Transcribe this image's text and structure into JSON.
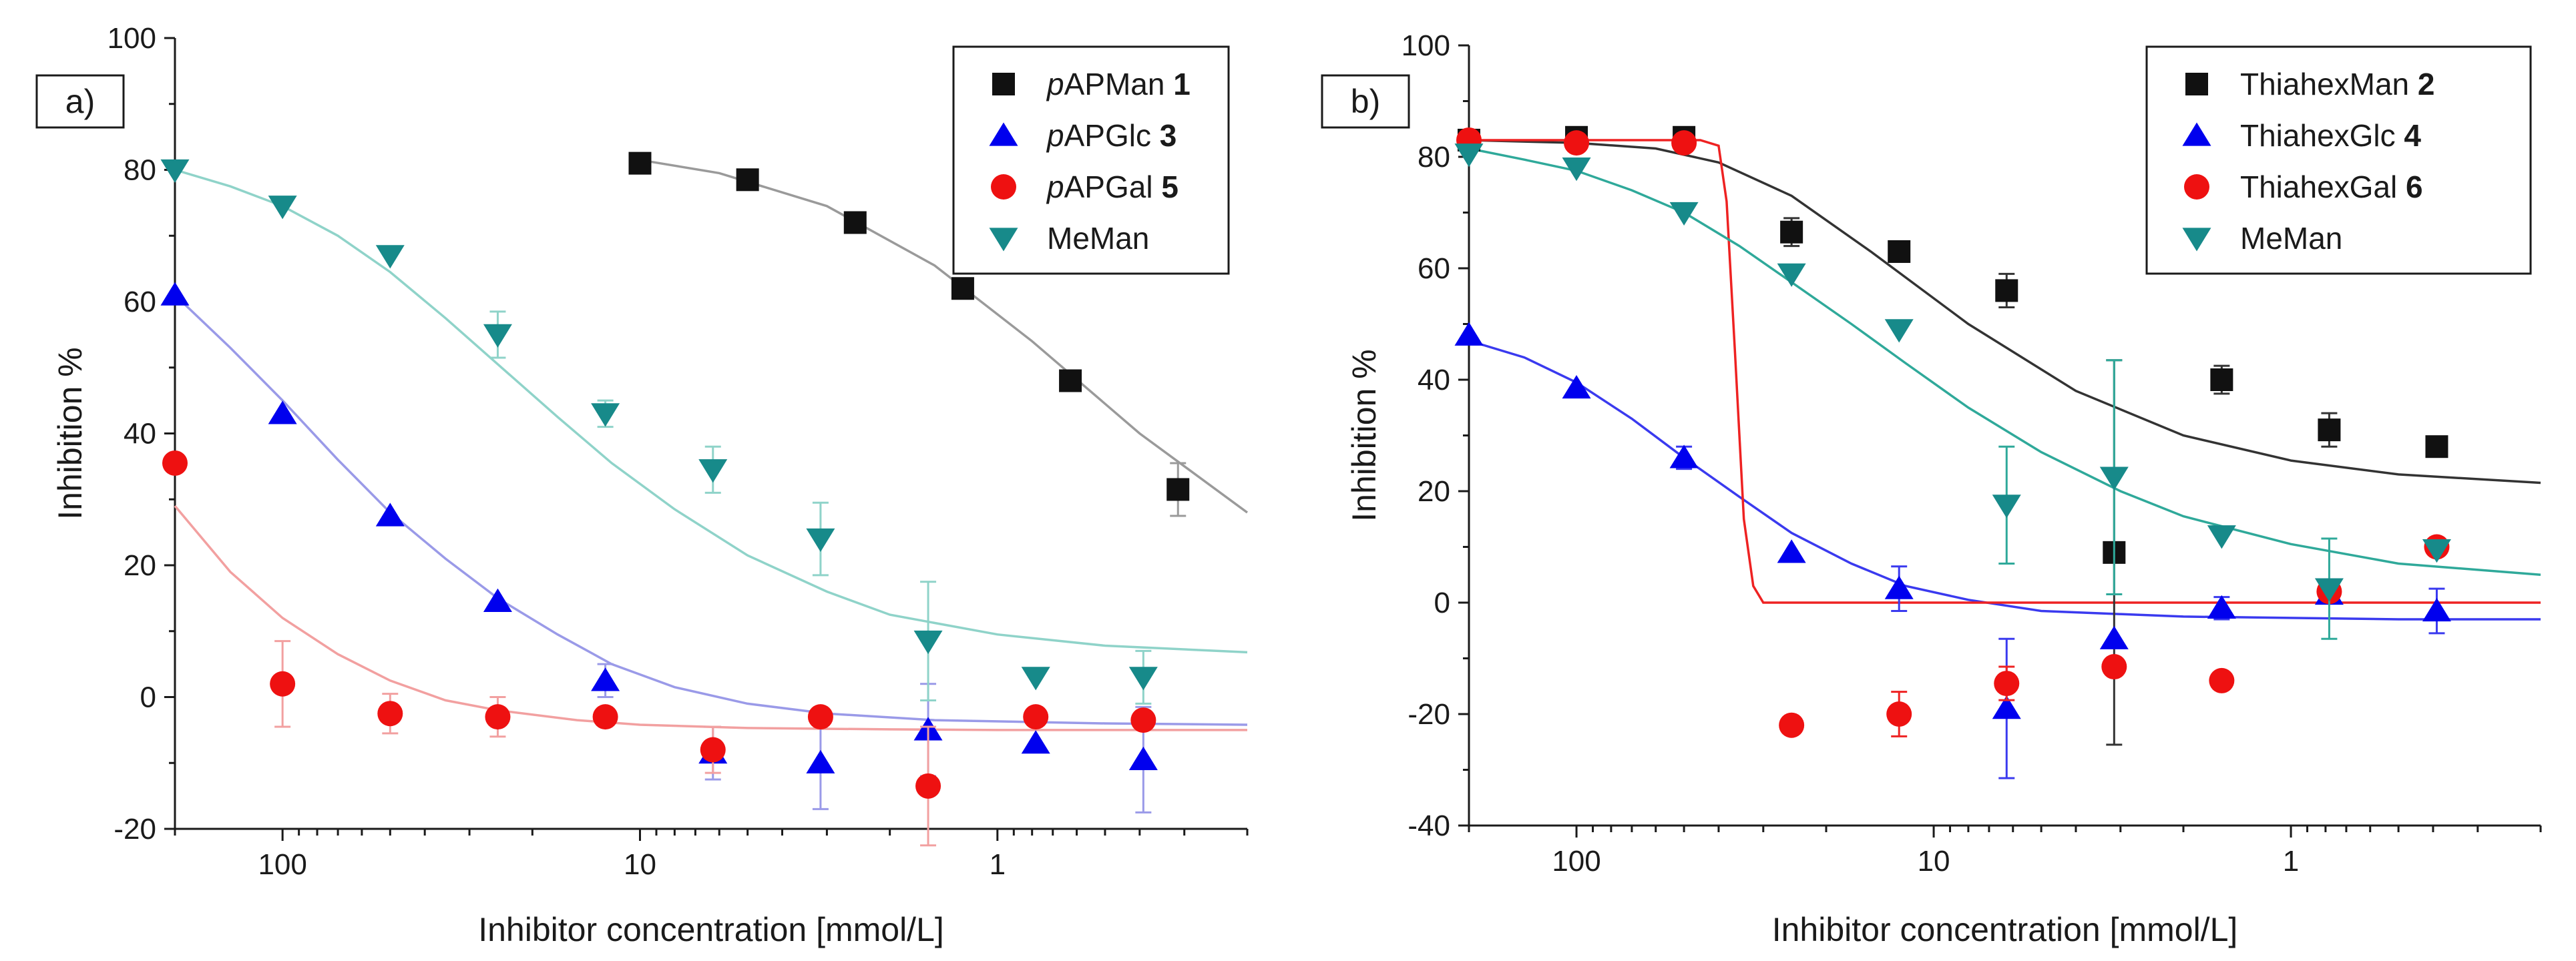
{
  "chart_data": [
    {
      "type": "scatter",
      "panel": "a)",
      "xlabel": "Inhibitor concentration [mmol/L]",
      "ylabel": "Inhibition %",
      "xscale": "log",
      "xaxis_reversed": true,
      "xlim": [
        200,
        0.2
      ],
      "ylim": [
        -20,
        100
      ],
      "yticks": [
        -20,
        0,
        20,
        40,
        60,
        80,
        100
      ],
      "xticks": [
        {
          "value": 100,
          "label": "100"
        },
        {
          "value": 10,
          "label": "10"
        },
        {
          "value": 1,
          "label": "1"
        }
      ],
      "legend_position": "top-right",
      "series": [
        {
          "name": "pAPMan 1",
          "label_prefix": "p",
          "label_main": "APMan",
          "label_bold": " 1",
          "marker": "square",
          "color": "#111111",
          "fit_color": "#9a9a9a",
          "x": [
            10,
            5,
            2.5,
            1.25,
            0.625,
            0.3125
          ],
          "y": [
            81,
            78.5,
            72,
            62,
            48,
            31.5
          ],
          "err": [
            0,
            0,
            0,
            0,
            0,
            4
          ],
          "fit_x": [
            10,
            6,
            3,
            1.5,
            0.8,
            0.4,
            0.2
          ],
          "fit_y": [
            81.5,
            79.5,
            74.5,
            65.5,
            54,
            40,
            28
          ]
        },
        {
          "name": "pAPGlc 3",
          "label_prefix": "p",
          "label_main": "APGlc",
          "label_bold": " 3",
          "marker": "triangle-up",
          "color": "#0000ee",
          "fit_color": "#9a9ae8",
          "x": [
            200,
            100,
            50,
            25,
            12.5,
            6.25,
            3.125,
            1.5625,
            0.78125,
            0.390625
          ],
          "y": [
            61,
            43,
            27.5,
            14.5,
            2.5,
            -8.5,
            -10,
            -5,
            -7,
            -9.5
          ],
          "err": [
            0,
            0,
            0,
            0,
            2.5,
            4,
            7,
            7,
            0,
            8
          ],
          "fit_x": [
            200,
            140,
            100,
            70,
            50,
            35,
            25,
            17,
            12,
            8,
            5,
            3,
            1.5,
            0.5,
            0.2
          ],
          "fit_y": [
            61,
            53,
            45,
            36,
            28,
            21,
            15,
            9.5,
            5,
            1.5,
            -1,
            -2.5,
            -3.5,
            -4,
            -4.2
          ]
        },
        {
          "name": "pAPGal 5",
          "label_prefix": "p",
          "label_main": "APGal",
          "label_bold": " 5",
          "marker": "circle",
          "color": "#ee1111",
          "fit_color": "#f2a0a0",
          "x": [
            200,
            100,
            50,
            25,
            12.5,
            6.25,
            3.125,
            1.5625,
            0.78125,
            0.390625
          ],
          "y": [
            35.5,
            2,
            -2.5,
            -3,
            -3,
            -8,
            -3,
            -13.5,
            -3,
            -3.5
          ],
          "err": [
            0,
            6.5,
            3,
            3,
            0,
            3.5,
            0,
            9,
            0,
            0
          ],
          "fit_x": [
            200,
            140,
            100,
            70,
            50,
            35,
            25,
            15,
            10,
            5,
            2,
            1,
            0.2
          ],
          "fit_y": [
            29,
            19,
            12,
            6.5,
            2.5,
            -0.5,
            -2,
            -3.5,
            -4.2,
            -4.7,
            -4.9,
            -5,
            -5
          ]
        },
        {
          "name": "MeMan",
          "label_prefix": "",
          "label_main": "MeMan",
          "label_bold": "",
          "marker": "triangle-down",
          "color": "#178a8a",
          "fit_color": "#8fd3c9",
          "x": [
            200,
            100,
            50,
            25,
            12.5,
            6.25,
            3.125,
            1.5625,
            0.78125,
            0.390625
          ],
          "y": [
            80,
            74.5,
            67,
            55,
            43,
            34.5,
            24,
            8.5,
            3,
            3
          ],
          "err": [
            0,
            0,
            0,
            3.5,
            2,
            3.5,
            5.5,
            9,
            0,
            4
          ],
          "fit_x": [
            200,
            140,
            100,
            70,
            50,
            35,
            25,
            17,
            12,
            8,
            5,
            3,
            2,
            1,
            0.5,
            0.2
          ],
          "fit_y": [
            80,
            77.5,
            74.5,
            70,
            64.5,
            57.5,
            50.5,
            42.5,
            35.5,
            28.5,
            21.5,
            16,
            12.5,
            9.5,
            7.8,
            6.8
          ]
        }
      ]
    },
    {
      "type": "scatter",
      "panel": "b)",
      "xlabel": "Inhibitor concentration [mmol/L]",
      "ylabel": "Inhibition %",
      "xscale": "log",
      "xaxis_reversed": true,
      "xlim": [
        200,
        0.2
      ],
      "ylim": [
        -40,
        100
      ],
      "yticks": [
        -40,
        -20,
        0,
        20,
        40,
        60,
        80,
        100
      ],
      "xticks": [
        {
          "value": 100,
          "label": "100"
        },
        {
          "value": 10,
          "label": "10"
        },
        {
          "value": 1,
          "label": "1"
        }
      ],
      "legend_position": "top-right",
      "series": [
        {
          "name": "ThiahexMan 2",
          "label_prefix": "",
          "label_main": "ThiahexMan",
          "label_bold": " 2",
          "marker": "square",
          "color": "#111111",
          "fit_color": "#333333",
          "x": [
            200,
            100,
            50,
            25,
            12.5,
            6.25,
            3.125,
            1.5625,
            0.78125,
            0.390625
          ],
          "y": [
            83,
            83.5,
            83.5,
            66.5,
            63,
            56,
            9,
            40,
            31,
            28
          ],
          "err": [
            0,
            0,
            0,
            2.5,
            0,
            3,
            34.5,
            2.5,
            3,
            0
          ],
          "fit_x": [
            200,
            100,
            60,
            40,
            25,
            15,
            8,
            4,
            2,
            1,
            0.5,
            0.2
          ],
          "fit_y": [
            83,
            82.5,
            81.5,
            79,
            73,
            63,
            50,
            38,
            30,
            25.5,
            23,
            21.5
          ]
        },
        {
          "name": "ThiahexGlc 4",
          "label_prefix": "",
          "label_main": "ThiahexGlc",
          "label_bold": " 4",
          "marker": "triangle-up",
          "color": "#0000ee",
          "fit_color": "#3a3aef",
          "x": [
            200,
            100,
            50,
            25,
            12.5,
            6.25,
            3.125,
            1.5625,
            0.78125,
            0.390625
          ],
          "y": [
            48,
            38.5,
            26,
            9,
            2.5,
            -19,
            -6.5,
            -1,
            1.5,
            -1.5
          ],
          "err": [
            0,
            0,
            2,
            0,
            4,
            12.5,
            0,
            2,
            0,
            4
          ],
          "fit_x": [
            200,
            140,
            100,
            70,
            50,
            35,
            25,
            17,
            12,
            8,
            5,
            2,
            0.5,
            0.2
          ],
          "fit_y": [
            47,
            44,
            39.5,
            33,
            26,
            19,
            12.5,
            7,
            3,
            0.5,
            -1.5,
            -2.5,
            -3,
            -3
          ]
        },
        {
          "name": "ThiahexGal 6",
          "label_prefix": "",
          "label_main": "ThiahexGal",
          "label_bold": " 6",
          "marker": "circle",
          "color": "#ee1111",
          "fit_color": "#ee2222",
          "x": [
            200,
            100,
            50,
            25,
            12.5,
            6.25,
            3.125,
            1.5625,
            0.78125,
            0.390625
          ],
          "y": [
            83,
            82.5,
            82.5,
            -22,
            -20,
            -14.5,
            -11.5,
            -14,
            2,
            10
          ],
          "err": [
            0,
            0,
            0,
            0,
            4,
            3,
            0,
            0,
            0,
            0
          ],
          "fit_x": [
            200,
            45,
            40,
            38,
            36,
            34,
            32,
            30,
            0.2
          ],
          "fit_y": [
            83,
            83,
            82,
            72,
            45,
            15,
            3,
            0,
            0
          ]
        },
        {
          "name": "MeMan",
          "label_prefix": "",
          "label_main": "MeMan",
          "label_bold": "",
          "marker": "triangle-down",
          "color": "#178a8a",
          "fit_color": "#2fa99a",
          "x": [
            200,
            100,
            50,
            25,
            12.5,
            6.25,
            3.125,
            1.5625,
            0.78125,
            0.390625
          ],
          "y": [
            80.5,
            78,
            70,
            59,
            49,
            17.5,
            22.5,
            12,
            2.5,
            9.5
          ],
          "err": [
            0,
            0,
            0,
            0,
            0,
            10.5,
            21,
            0,
            9,
            0
          ],
          "fit_x": [
            200,
            140,
            100,
            70,
            50,
            35,
            25,
            17,
            12,
            8,
            5,
            3,
            2,
            1,
            0.5,
            0.2
          ],
          "fit_y": [
            81.5,
            79.5,
            77.5,
            74,
            70,
            64,
            57.5,
            50,
            43,
            35,
            27,
            20,
            15.5,
            10.5,
            7,
            5
          ]
        }
      ]
    }
  ]
}
